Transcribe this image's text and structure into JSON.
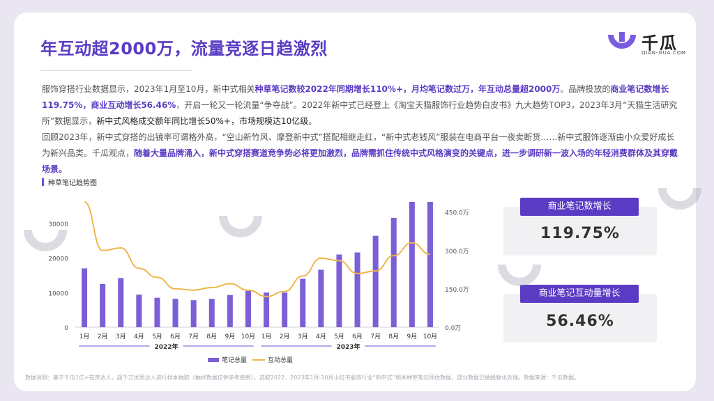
{
  "title": "年互动超2000万，流量竞逐日趋激烈",
  "logo": {
    "name": "千瓜",
    "sub": "QIAN-GUA.COM"
  },
  "paragraph1": [
    {
      "t": "服饰穿搭行业数据显示，2023年1月至10月，新中式相关",
      "s": "n"
    },
    {
      "t": "种草笔记数较2022年同期增长110%+，月均笔记数过万，年互动总量超2000万",
      "s": "h"
    },
    {
      "t": "。品牌投放的",
      "s": "n"
    },
    {
      "t": "商业笔记数增长119.75%，商业互动增长56.46%",
      "s": "h"
    },
    {
      "t": "，开启一轮又一轮流量“争夺战”。2022年新中式已经登上《淘宝天猫服饰行业趋势白皮书》九大趋势TOP3，2023年3月“天猫生活研究所”数据显示，",
      "s": "n"
    },
    {
      "t": "新中式风格成交额年同比增长50%+，市场规模达10亿级",
      "s": "b"
    },
    {
      "t": "。",
      "s": "n"
    }
  ],
  "paragraph2": [
    {
      "t": "回顾2023年，新中式穿搭的出镜率可谓格外高，“空山新竹风、摩登新中式”搭配相继走红，“新中式老钱风”服装在电商平台一夜卖断货……新中式服饰逐渐由小众爱好成长为新兴品类。千瓜观点，",
      "s": "n"
    },
    {
      "t": "随着大量品牌涌入，新中式穿搭赛道竞争势必将更加激烈，品牌需抓住传统中式风格演变的关键点，进一步调研新一波入场的年轻消费群体及其穿戴场景。",
      "s": "h"
    }
  ],
  "chart_label": "种草笔记趋势图",
  "chart_data": {
    "type": "bar+line",
    "categories": [
      "1月",
      "2月",
      "3月",
      "4月",
      "5月",
      "6月",
      "7月",
      "8月",
      "9月",
      "10月",
      "1月",
      "2月",
      "3月",
      "4月",
      "5月",
      "6月",
      "7月",
      "8月",
      "9月",
      "10月"
    ],
    "year_groups": [
      {
        "label": "2022年",
        "count": 10
      },
      {
        "label": "2023年",
        "count": 10
      }
    ],
    "series": [
      {
        "name": "笔记总量",
        "type": "bar",
        "axis": "left",
        "values": [
          17000,
          12500,
          14200,
          9400,
          8500,
          8200,
          7800,
          8200,
          9300,
          10500,
          10000,
          10000,
          14000,
          16600,
          21000,
          21600,
          26400,
          31600,
          36200,
          36200
        ]
      },
      {
        "name": "互动总量",
        "type": "line",
        "axis": "right",
        "values": [
          4900000,
          3000000,
          3100000,
          2300000,
          1950000,
          1500000,
          1450000,
          1550000,
          1700000,
          1450000,
          1200000,
          1400000,
          2000000,
          2700000,
          2600000,
          2100000,
          2200000,
          2800000,
          3300000,
          2850000
        ]
      }
    ],
    "left_axis": {
      "min": 0,
      "max": 36200,
      "ticks": [
        0,
        10000,
        20000,
        30000
      ],
      "tick_labels": [
        "0",
        "10000",
        "20000",
        "30000"
      ]
    },
    "right_axis": {
      "min": 0,
      "max": 4900000,
      "ticks": [
        0,
        1500000,
        3000000,
        4500000
      ],
      "tick_labels": [
        "0.0万",
        "150.0万",
        "300.0万",
        "450.0万"
      ]
    },
    "legend": {
      "position": "bottom-center",
      "items": [
        "笔记总量",
        "互动总量"
      ]
    }
  },
  "stats": [
    {
      "label": "商业笔记数增长",
      "value": "119.75%"
    },
    {
      "label": "商业笔记互动量增长",
      "value": "56.46%"
    }
  ],
  "colors": {
    "primary": "#5a3bc4",
    "bar": "#7b5fd6",
    "line": "#f0b64a",
    "accent": "#6d4fd8"
  },
  "footnote": "数据说明：基于千瓜1亿+在库达人，超千万优质达人进行样本抽取（抽样数据仅供参考使用），选取2022、2023年1月-10月小红书服饰行业“新中式”相关种草笔记预估数据，部分数据已做脱敏化处理。数据来源：千瓜数据。"
}
